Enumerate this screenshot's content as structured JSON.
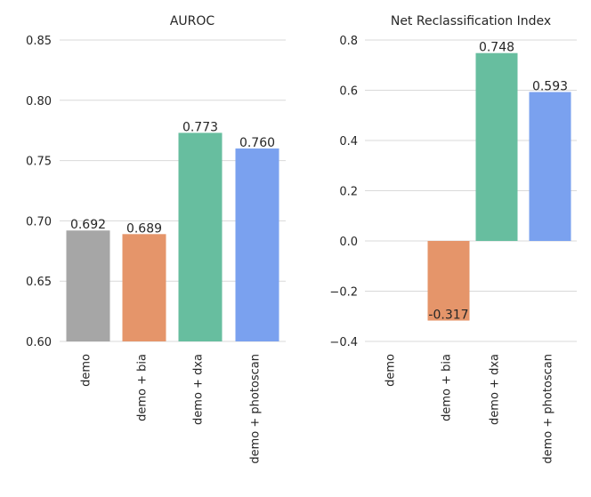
{
  "chart_data": [
    {
      "type": "bar",
      "title": "AUROC",
      "categories": [
        "demo",
        "demo + bia",
        "demo + dxa",
        "demo + photoscan"
      ],
      "values": [
        0.692,
        0.689,
        0.773,
        0.76
      ],
      "value_labels": [
        "0.692",
        "0.689",
        "0.773",
        "0.760"
      ],
      "ylim": [
        0.6,
        0.85
      ],
      "yticks": [
        0.6,
        0.65,
        0.7,
        0.75,
        0.8,
        0.85
      ],
      "ytick_labels": [
        "0.60",
        "0.65",
        "0.70",
        "0.75",
        "0.80",
        "0.85"
      ],
      "colors": [
        "#a6a6a6",
        "#e5956a",
        "#67be9f",
        "#7aa1ef"
      ],
      "grid": true
    },
    {
      "type": "bar",
      "title": "Net Reclassification Index",
      "categories": [
        "demo",
        "demo + bia",
        "demo + dxa",
        "demo + photoscan"
      ],
      "values": [
        0,
        -0.317,
        0.748,
        0.593
      ],
      "value_labels": [
        "",
        "-0.317",
        "0.748",
        "0.593"
      ],
      "ylim": [
        -0.4,
        0.8
      ],
      "yticks": [
        -0.4,
        -0.2,
        0.0,
        0.2,
        0.4,
        0.6,
        0.8
      ],
      "ytick_labels": [
        "−0.4",
        "−0.2",
        "0.0",
        "0.2",
        "0.4",
        "0.6",
        "0.8"
      ],
      "colors": [
        "#a6a6a6",
        "#e5956a",
        "#67be9f",
        "#7aa1ef"
      ],
      "grid": true
    }
  ]
}
